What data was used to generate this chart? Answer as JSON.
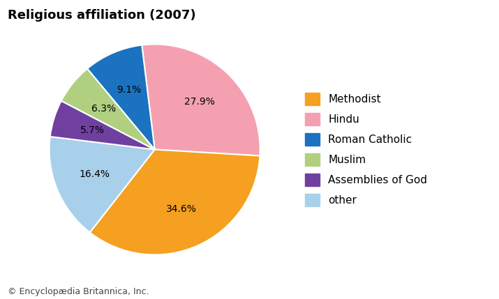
{
  "title": "Religious affiliation (2007)",
  "labels": [
    "Methodist",
    "Hindu",
    "Roman Catholic",
    "Muslim",
    "Assemblies of God",
    "other"
  ],
  "values": [
    34.6,
    27.9,
    9.1,
    6.3,
    5.7,
    16.4
  ],
  "colors": [
    "#F5A020",
    "#F4A0B0",
    "#1A72C0",
    "#B0D080",
    "#7040A0",
    "#A8D0EA"
  ],
  "pct_labels": [
    "34.6%",
    "27.9%",
    "9.1%",
    "6.3%",
    "5.7%",
    "16.4%"
  ],
  "title_fontsize": 13,
  "legend_fontsize": 11,
  "pct_fontsize": 10,
  "footer": "© Encyclopædia Britannica, Inc.",
  "footer_fontsize": 9,
  "background_color": "#ffffff",
  "plot_order": [
    1,
    0,
    5,
    4,
    3,
    2
  ],
  "start_angle": 97
}
